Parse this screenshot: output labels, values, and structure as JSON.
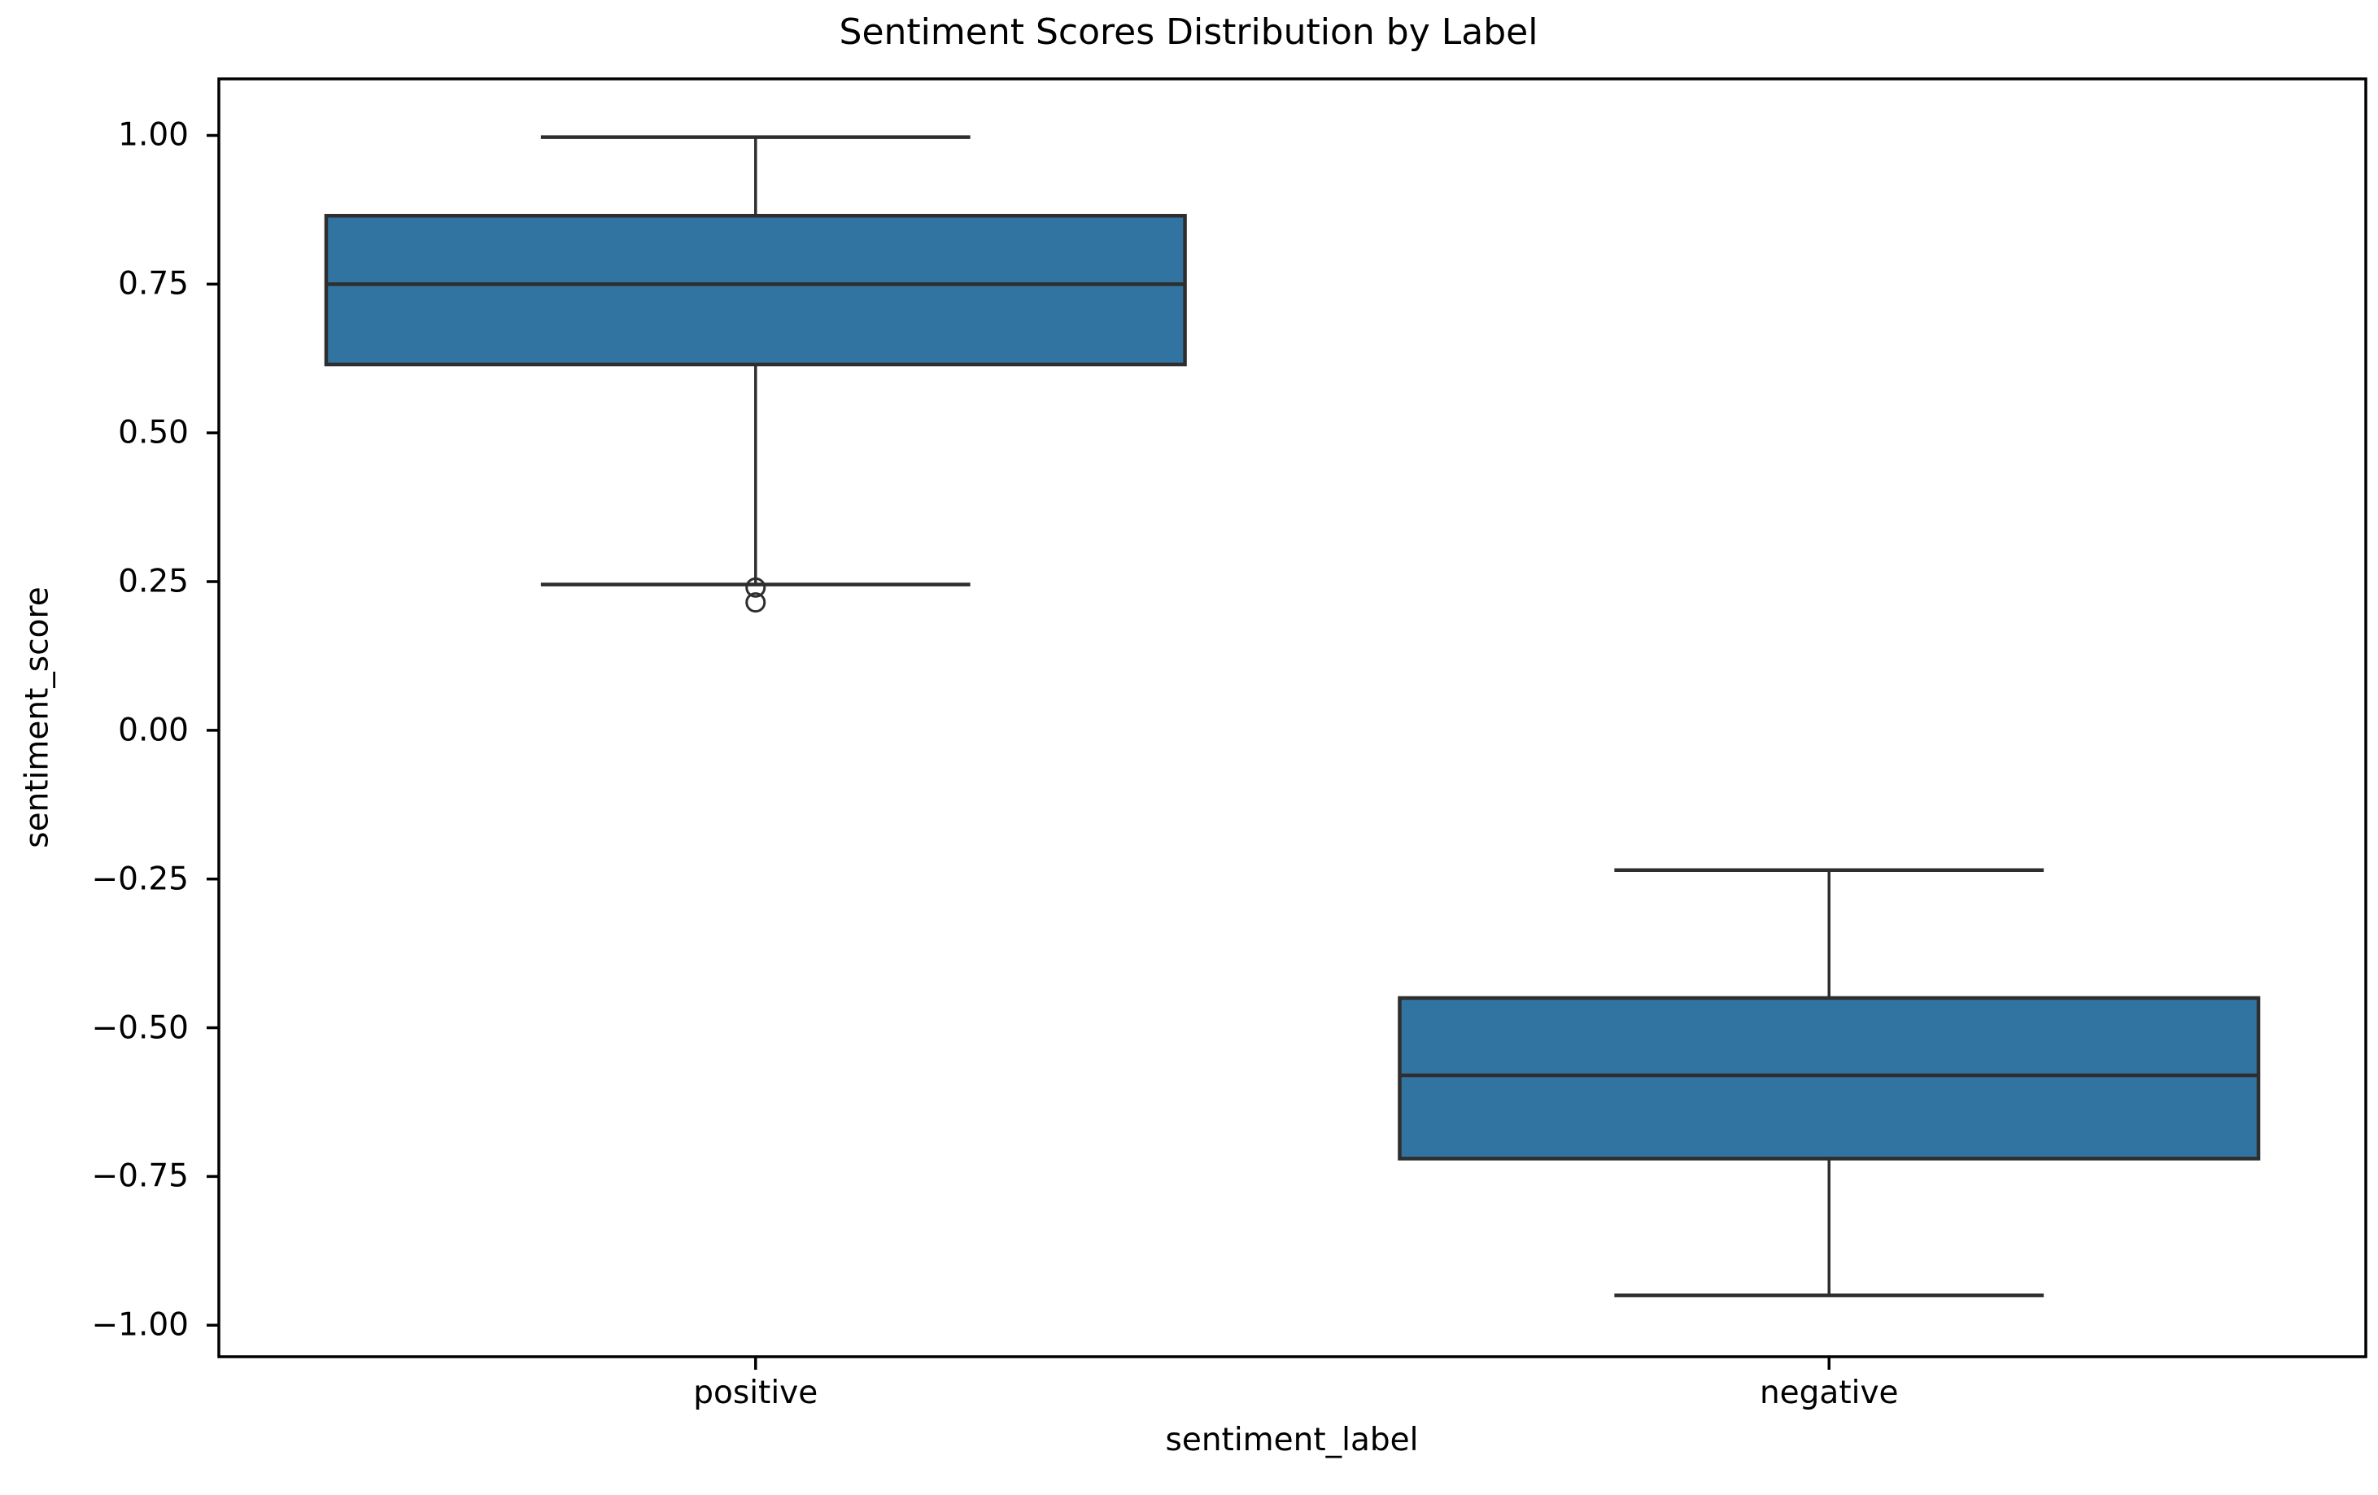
{
  "chart_data": {
    "type": "box",
    "title": "Sentiment Scores Distribution by Label",
    "xlabel": "sentiment_label",
    "ylabel": "sentiment_score",
    "categories": [
      "positive",
      "negative"
    ],
    "series": [
      {
        "category": "positive",
        "whisker_low": 0.245,
        "q1": 0.615,
        "median": 0.75,
        "q3": 0.865,
        "whisker_high": 0.997,
        "outliers": [
          0.24,
          0.215
        ]
      },
      {
        "category": "negative",
        "whisker_low": -0.95,
        "q1": -0.72,
        "median": -0.58,
        "q3": -0.45,
        "whisker_high": -0.235,
        "outliers": []
      }
    ],
    "ylim": [
      -1.053,
      1.095
    ],
    "yticks": [
      {
        "value": 1.0,
        "label": "1.00"
      },
      {
        "value": 0.75,
        "label": "0.75"
      },
      {
        "value": 0.5,
        "label": "0.50"
      },
      {
        "value": 0.25,
        "label": "0.25"
      },
      {
        "value": 0.0,
        "label": "0.00"
      },
      {
        "value": -0.25,
        "label": "−0.25"
      },
      {
        "value": -0.5,
        "label": "−0.50"
      },
      {
        "value": -0.75,
        "label": "−0.75"
      },
      {
        "value": -1.0,
        "label": "−1.00"
      }
    ],
    "colors": {
      "box_fill": "#3274a1",
      "box_edge": "#2e2e2e",
      "axis": "#000000"
    },
    "grid": false,
    "legend": "none"
  }
}
